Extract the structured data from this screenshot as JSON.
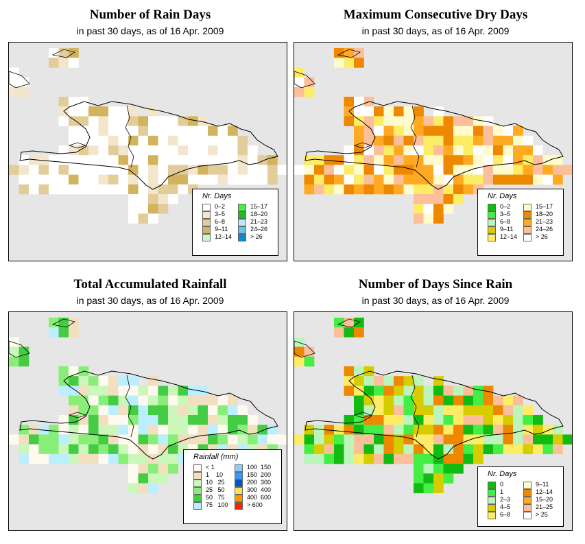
{
  "panels": [
    {
      "title": "Number of Rain Days",
      "subtitle": "in past 30 days, as of  16 Apr. 2009",
      "legend": {
        "title": "Nr. Days",
        "items": [
          {
            "label": "0–2",
            "color": "#ffffff"
          },
          {
            "label": "3–5",
            "color": "#f3e6cc"
          },
          {
            "label": "6–8",
            "color": "#e2cd9a"
          },
          {
            "label": "9–11",
            "color": "#d2b35e"
          },
          {
            "label": "12–14",
            "color": "#ccf7cc"
          },
          {
            "label": "15–17",
            "color": "#44ee44"
          },
          {
            "label": "18–20",
            "color": "#22bb22"
          },
          {
            "label": "21–23",
            "color": "#bbe8f5"
          },
          {
            "label": "24–26",
            "color": "#66c4ee"
          },
          {
            "label": "> 26",
            "color": "#1188cc"
          }
        ]
      }
    },
    {
      "title": "Maximum Consecutive Dry Days",
      "subtitle": "in past 30 days, as of  16 Apr. 2009",
      "legend": {
        "title": "Nr. Days",
        "items": [
          {
            "label": "0–2",
            "color": "#11bb11"
          },
          {
            "label": "3–5",
            "color": "#44ee44"
          },
          {
            "label": "6–8",
            "color": "#bbf5bb"
          },
          {
            "label": "9–11",
            "color": "#d6cc00"
          },
          {
            "label": "12–14",
            "color": "#fcec66"
          },
          {
            "label": "15–17",
            "color": "#fffbcc"
          },
          {
            "label": "18–20",
            "color": "#ee8800"
          },
          {
            "label": "21–23",
            "color": "#ffaa22"
          },
          {
            "label": "24–26",
            "color": "#fbbf99"
          },
          {
            "label": "> 26",
            "color": "#ffffff"
          }
        ]
      }
    },
    {
      "title": "Total Accumulated Rainfall",
      "subtitle": "in past 30 days, as of  16 Apr. 2009",
      "legend": {
        "title": "Rainfall (mm)",
        "items": [
          {
            "label": "< 1",
            "color": "#fffaf0"
          },
          {
            "label": "1    10",
            "color": "#f1dfbf"
          },
          {
            "label": "10   25",
            "color": "#ccf7bb"
          },
          {
            "label": "25   50",
            "color": "#88ee77"
          },
          {
            "label": "50   75",
            "color": "#44cc44"
          },
          {
            "label": "75   100",
            "color": "#bbeeff"
          },
          {
            "label": "100  150",
            "color": "#88ccff"
          },
          {
            "label": "150  200",
            "color": "#3399ff"
          },
          {
            "label": "200  300",
            "color": "#0055cc"
          },
          {
            "label": "300  400",
            "color": "#ffdd55"
          },
          {
            "label": "400  600",
            "color": "#ff9900"
          },
          {
            "label": "> 600",
            "color": "#ff2200"
          }
        ]
      }
    },
    {
      "title": "Number of Days Since Rain",
      "subtitle": "in past 30 days, as of  16 Apr. 2009",
      "legend": {
        "title": "Nr. Days",
        "items": [
          {
            "label": "0",
            "color": "#11bb11"
          },
          {
            "label": "1",
            "color": "#44ee44"
          },
          {
            "label": "2–3",
            "color": "#bbf5bb"
          },
          {
            "label": "4–5",
            "color": "#d6cc00"
          },
          {
            "label": "6–8",
            "color": "#fcec66"
          },
          {
            "label": "9–11",
            "color": "#fffbcc"
          },
          {
            "label": "12–14",
            "color": "#ee8800"
          },
          {
            "label": "15–20",
            "color": "#ffaa22"
          },
          {
            "label": "21–25",
            "color": "#fbbf99"
          },
          {
            "label": "> 25",
            "color": "#ffffff"
          }
        ]
      }
    }
  ]
}
